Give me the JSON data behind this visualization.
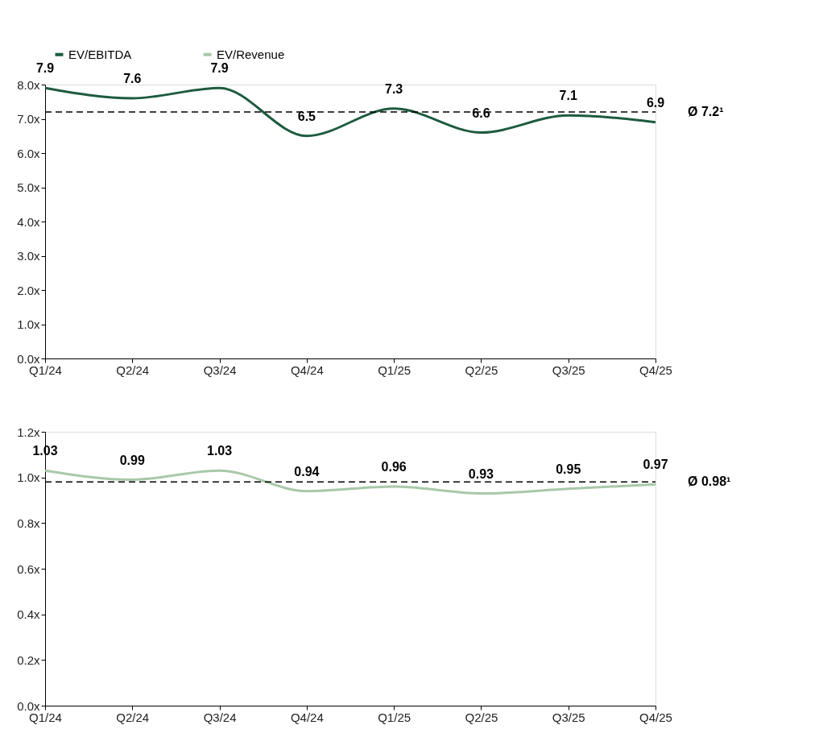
{
  "chart_data": [
    {
      "type": "line",
      "categories": [
        "Q1/24",
        "Q2/24",
        "Q3/24",
        "Q4/24",
        "Q1/25",
        "Q2/25",
        "Q3/25",
        "Q4/25"
      ],
      "series": [
        {
          "name": "EV/EBITDA",
          "color": "#1e5b3f",
          "values": [
            7.9,
            7.6,
            7.9,
            6.5,
            7.3,
            6.6,
            7.1,
            6.9
          ]
        }
      ],
      "ylim": [
        0,
        8
      ],
      "yticks": [
        {
          "value": 0,
          "label": "0.0x"
        },
        {
          "value": 1,
          "label": "1.0x"
        },
        {
          "value": 2,
          "label": "2.0x"
        },
        {
          "value": 3,
          "label": "3.0x"
        },
        {
          "value": 4,
          "label": "4.0x"
        },
        {
          "value": 5,
          "label": "5.0x"
        },
        {
          "value": 6,
          "label": "6.0x"
        },
        {
          "value": 7,
          "label": "7.0x"
        },
        {
          "value": 8,
          "label": "8.0x"
        }
      ],
      "ref_lines": [
        {
          "axis": "y",
          "value": 7.2,
          "label": "Ø 7.2¹",
          "color": "#000000",
          "line_style": "dashed"
        }
      ],
      "data_labels": true,
      "grid": false,
      "legend": "top left",
      "marker": "none",
      "line_style": "solid"
    },
    {
      "type": "line",
      "categories": [
        "Q1/24",
        "Q2/24",
        "Q3/24",
        "Q4/24",
        "Q1/25",
        "Q2/25",
        "Q3/25",
        "Q4/25"
      ],
      "series": [
        {
          "name": "EV/Revenue",
          "color": "#a9c8a8",
          "values": [
            1.03,
            0.99,
            1.03,
            0.94,
            0.96,
            0.93,
            0.95,
            0.97
          ]
        }
      ],
      "ylim": [
        0,
        1.2
      ],
      "yticks": [
        {
          "value": 0,
          "label": "0.0x"
        },
        {
          "value": 0.2,
          "label": "0.2x"
        },
        {
          "value": 0.4,
          "label": "0.4x"
        },
        {
          "value": 0.6,
          "label": "0.6x"
        },
        {
          "value": 0.8,
          "label": "0.8x"
        },
        {
          "value": 1.0,
          "label": "1.0x"
        },
        {
          "value": 1.2,
          "label": "1.2x"
        }
      ],
      "ref_lines": [
        {
          "axis": "y",
          "value": 0.98,
          "label": "Ø 0.98¹",
          "color": "#000000",
          "line_style": "dashed"
        }
      ],
      "data_labels": true,
      "grid": false,
      "legend": "top left",
      "marker": "none",
      "line_style": "solid"
    }
  ]
}
